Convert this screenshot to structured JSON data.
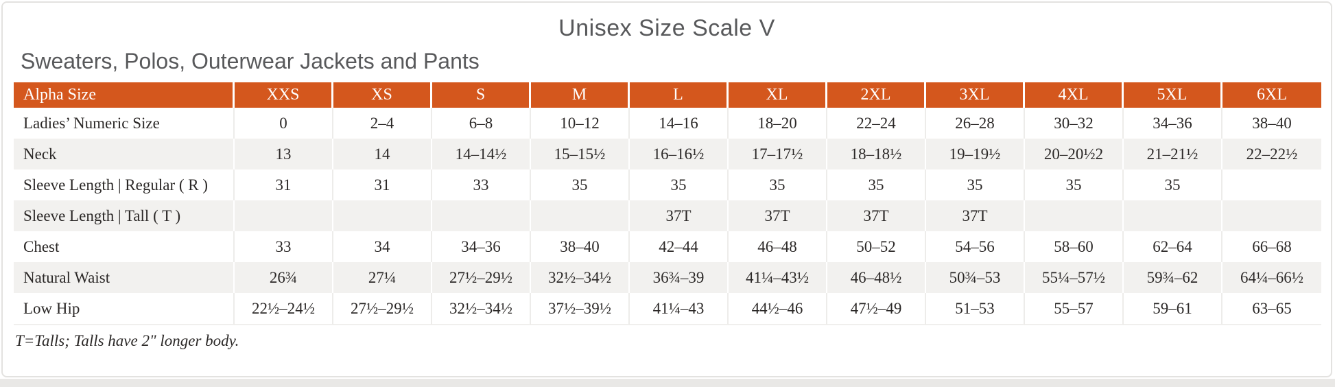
{
  "page": {
    "title": "Unisex Size Scale V",
    "subtitle": "Sweaters, Polos, Outerwear Jackets and Pants",
    "footnote": "T=Talls; Talls have 2\" longer body."
  },
  "colors": {
    "header_bg": "#d4571d",
    "header_text": "#ffffff",
    "row_alt_bg": "#f2f1ef",
    "title_text": "#58595b",
    "body_text": "#2b2827",
    "page_bg": "#e9e8e6",
    "card_border": "#e3e2e0"
  },
  "table": {
    "columns": [
      "Alpha Size",
      "XXS",
      "XS",
      "S",
      "M",
      "L",
      "XL",
      "2XL",
      "3XL",
      "4XL",
      "5XL",
      "6XL"
    ],
    "rows": [
      {
        "label": "Ladies’ Numeric Size",
        "values": [
          "0",
          "2–4",
          "6–8",
          "10–12",
          "14–16",
          "18–20",
          "22–24",
          "26–28",
          "30–32",
          "34–36",
          "38–40"
        ]
      },
      {
        "label": "Neck",
        "values": [
          "13",
          "14",
          "14–14½",
          "15–15½",
          "16–16½",
          "17–17½",
          "18–18½",
          "19–19½",
          "20–20½2",
          "21–21½",
          "22–22½"
        ]
      },
      {
        "label": "Sleeve Length | Regular ( R )",
        "values": [
          "31",
          "31",
          "33",
          "35",
          "35",
          "35",
          "35",
          "35",
          "35",
          "35",
          ""
        ]
      },
      {
        "label": "Sleeve Length | Tall ( T )",
        "values": [
          "",
          "",
          "",
          "",
          "37T",
          "37T",
          "37T",
          "37T",
          "",
          "",
          ""
        ]
      },
      {
        "label": "Chest",
        "values": [
          "33",
          "34",
          "34–36",
          "38–40",
          "42–44",
          "46–48",
          "50–52",
          "54–56",
          "58–60",
          "62–64",
          "66–68"
        ]
      },
      {
        "label": "Natural Waist",
        "values": [
          "26¾",
          "27¼",
          "27½–29½",
          "32½–34½",
          "36¾–39",
          "41¼–43½",
          "46–48½",
          "50¾–53",
          "55¼–57½",
          "59¾–62",
          "64¼–66½"
        ]
      },
      {
        "label": "Low Hip",
        "values": [
          "22½–24½",
          "27½–29½",
          "32½–34½",
          "37½–39½",
          "41¼–43",
          "44½–46",
          "47½–49",
          "51–53",
          "55–57",
          "59–61",
          "63–65"
        ]
      }
    ]
  }
}
